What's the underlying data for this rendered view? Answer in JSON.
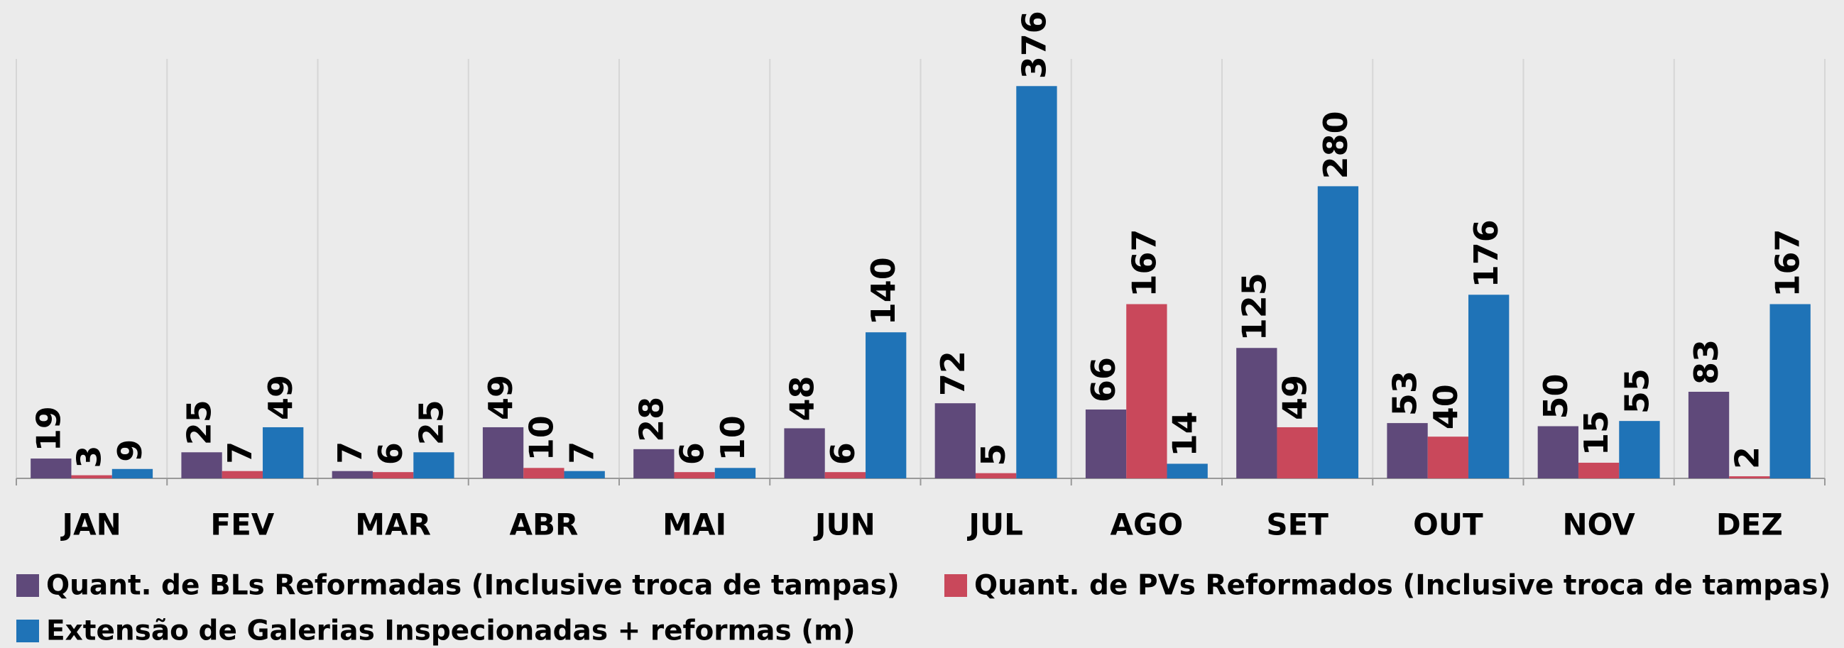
{
  "chart_data": {
    "type": "bar",
    "categories": [
      "JAN",
      "FEV",
      "MAR",
      "ABR",
      "MAI",
      "JUN",
      "JUL",
      "AGO",
      "SET",
      "OUT",
      "NOV",
      "DEZ"
    ],
    "series": [
      {
        "name": "Quant. de BLs Reformadas (Inclusive troca de tampas)",
        "color": "#5f497a",
        "values": [
          19,
          25,
          7,
          49,
          28,
          48,
          72,
          66,
          125,
          53,
          50,
          83
        ]
      },
      {
        "name": "Quant. de PVs Reformados (Inclusive troca de tampas)",
        "color": "#c9485b",
        "values": [
          3,
          7,
          6,
          10,
          6,
          6,
          5,
          167,
          49,
          40,
          15,
          2
        ]
      },
      {
        "name": "Extensão de Galerias Inspecionadas + reformas (m)",
        "color": "#1f73b7",
        "values": [
          9,
          49,
          25,
          7,
          10,
          140,
          376,
          14,
          280,
          176,
          55,
          167
        ]
      }
    ],
    "ylim": [
      0,
      400
    ],
    "legend": "bottom"
  }
}
